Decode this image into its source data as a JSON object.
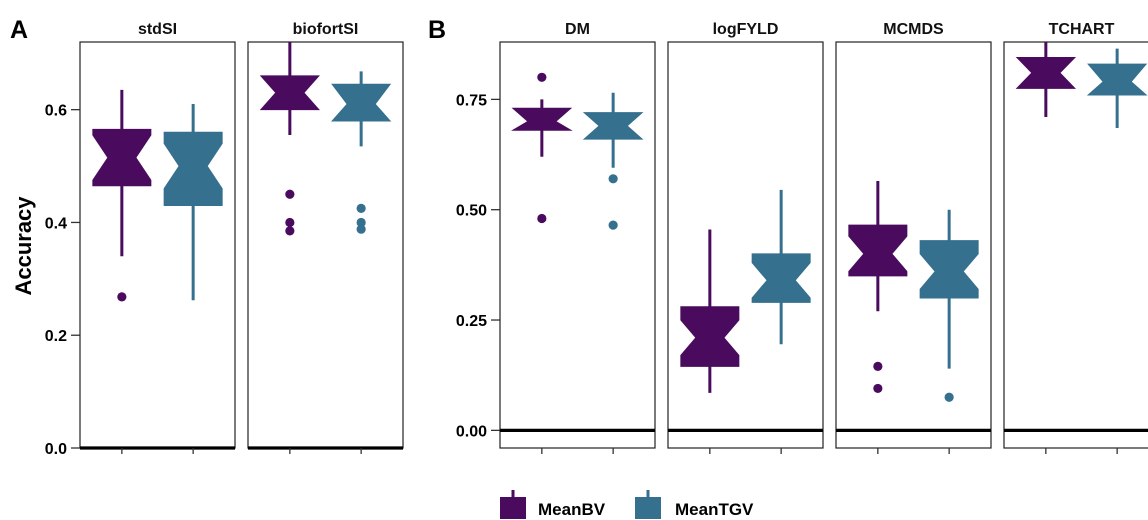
{
  "figure": {
    "panel_labels": [
      "A",
      "B"
    ],
    "y_axis_label": "Accuracy"
  },
  "legend": {
    "items": [
      {
        "label": "MeanBV",
        "color": "#4a0b5e"
      },
      {
        "label": "MeanTGV",
        "color": "#35708e"
      }
    ],
    "position": "bottom"
  },
  "chart_data": [
    {
      "type": "boxplot",
      "panel": "A",
      "ylabel": "Accuracy",
      "ylim": [
        0.0,
        0.72
      ],
      "yticks": [
        0.0,
        0.2,
        0.4,
        0.6
      ],
      "ytick_labels": [
        "0.0",
        "0.2",
        "0.4",
        "0.6"
      ],
      "horizontal_reference_line": 0.0,
      "grid": false,
      "notched": true,
      "facets": [
        {
          "name": "stdSI",
          "series": [
            {
              "name": "MeanBV",
              "whisker_low": 0.34,
              "q1": 0.465,
              "median": 0.515,
              "q3": 0.565,
              "whisker_high": 0.635,
              "outliers": [
                0.268
              ]
            },
            {
              "name": "MeanTGV",
              "whisker_low": 0.262,
              "q1": 0.43,
              "median": 0.5,
              "q3": 0.56,
              "whisker_high": 0.61,
              "outliers": []
            }
          ]
        },
        {
          "name": "biofortSI",
          "series": [
            {
              "name": "MeanBV",
              "whisker_low": 0.555,
              "q1": 0.6,
              "median": 0.63,
              "q3": 0.66,
              "whisker_high": 0.72,
              "outliers": [
                0.45,
                0.4,
                0.385
              ]
            },
            {
              "name": "MeanTGV",
              "whisker_low": 0.535,
              "q1": 0.58,
              "median": 0.61,
              "q3": 0.645,
              "whisker_high": 0.668,
              "outliers": [
                0.425,
                0.4,
                0.388
              ]
            }
          ]
        }
      ]
    },
    {
      "type": "boxplot",
      "panel": "B",
      "ylabel": "",
      "ylim": [
        -0.04,
        0.88
      ],
      "yticks": [
        0.0,
        0.25,
        0.5,
        0.75
      ],
      "ytick_labels": [
        "0.00",
        "0.25",
        "0.50",
        "0.75"
      ],
      "horizontal_reference_line": 0.0,
      "grid": false,
      "notched": true,
      "facets": [
        {
          "name": "DM",
          "series": [
            {
              "name": "MeanBV",
              "whisker_low": 0.62,
              "q1": 0.68,
              "median": 0.7,
              "q3": 0.73,
              "whisker_high": 0.75,
              "outliers": [
                0.8,
                0.48
              ]
            },
            {
              "name": "MeanTGV",
              "whisker_low": 0.595,
              "q1": 0.66,
              "median": 0.69,
              "q3": 0.72,
              "whisker_high": 0.765,
              "outliers": [
                0.57,
                0.465
              ]
            }
          ]
        },
        {
          "name": "logFYLD",
          "series": [
            {
              "name": "MeanBV",
              "whisker_low": 0.085,
              "q1": 0.145,
              "median": 0.21,
              "q3": 0.28,
              "whisker_high": 0.455,
              "outliers": []
            },
            {
              "name": "MeanTGV",
              "whisker_low": 0.195,
              "q1": 0.29,
              "median": 0.34,
              "q3": 0.4,
              "whisker_high": 0.545,
              "outliers": []
            }
          ]
        },
        {
          "name": "MCMDS",
          "series": [
            {
              "name": "MeanBV",
              "whisker_low": 0.27,
              "q1": 0.35,
              "median": 0.4,
              "q3": 0.465,
              "whisker_high": 0.565,
              "outliers": [
                0.145,
                0.095
              ]
            },
            {
              "name": "MeanTGV",
              "whisker_low": 0.14,
              "q1": 0.3,
              "median": 0.36,
              "q3": 0.43,
              "whisker_high": 0.5,
              "outliers": [
                0.075
              ]
            }
          ]
        },
        {
          "name": "TCHART",
          "series": [
            {
              "name": "MeanBV",
              "whisker_low": 0.71,
              "q1": 0.775,
              "median": 0.81,
              "q3": 0.845,
              "whisker_high": 0.88,
              "outliers": []
            },
            {
              "name": "MeanTGV",
              "whisker_low": 0.685,
              "q1": 0.76,
              "median": 0.79,
              "q3": 0.83,
              "whisker_high": 0.865,
              "outliers": []
            }
          ]
        }
      ]
    }
  ]
}
